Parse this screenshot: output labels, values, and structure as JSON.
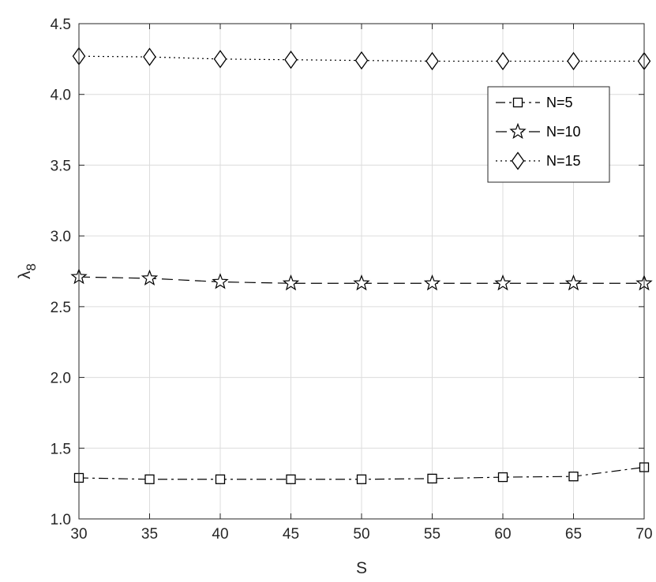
{
  "chart_data": {
    "type": "line",
    "title": "",
    "xlabel": "S",
    "ylabel_base": "λ",
    "ylabel_sub": "8",
    "x": [
      30,
      35,
      40,
      45,
      50,
      55,
      60,
      65,
      70
    ],
    "xlim": [
      30,
      70
    ],
    "ylim": [
      1.0,
      4.5
    ],
    "xticks": [
      "30",
      "35",
      "40",
      "45",
      "50",
      "55",
      "60",
      "65",
      "70"
    ],
    "yticks": [
      "1.0",
      "1.5",
      "2.0",
      "2.5",
      "3.0",
      "3.5",
      "4.0",
      "4.5"
    ],
    "grid": true,
    "legend_position": "upper-right",
    "series": [
      {
        "name": "N=5",
        "marker": "square",
        "linestyle": "dash-dot",
        "color": "#000000",
        "values": [
          1.29,
          1.28,
          1.28,
          1.28,
          1.28,
          1.285,
          1.295,
          1.3,
          1.365
        ]
      },
      {
        "name": "N=10",
        "marker": "star",
        "linestyle": "dashed",
        "color": "#000000",
        "values": [
          2.71,
          2.7,
          2.675,
          2.665,
          2.665,
          2.665,
          2.665,
          2.665,
          2.665
        ]
      },
      {
        "name": "N=15",
        "marker": "diamond",
        "linestyle": "dotted",
        "color": "#000000",
        "values": [
          4.27,
          4.265,
          4.25,
          4.245,
          4.24,
          4.235,
          4.235,
          4.235,
          4.235
        ]
      }
    ]
  }
}
